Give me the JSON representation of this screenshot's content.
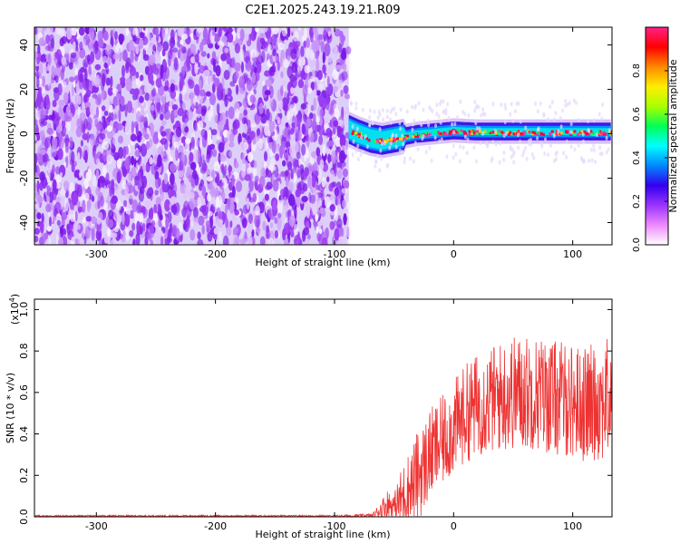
{
  "chart_data": [
    {
      "type": "heatmap",
      "title": "C2E1.2025.243.19.21.R09",
      "xlabel": "Height of straight line (km)",
      "ylabel": "Frequency (Hz)",
      "xlim": [
        -352,
        133
      ],
      "ylim": [
        -50,
        48
      ],
      "xticks": [
        -300,
        -200,
        -100,
        0,
        100
      ],
      "yticks": [
        -40,
        -20,
        0,
        20,
        40
      ],
      "signal_onset_km": -88,
      "ridge": {
        "x": [
          -88,
          -80,
          -70,
          -60,
          -50,
          -40,
          -30,
          -20,
          -10,
          0,
          20,
          40,
          60,
          80,
          100,
          133
        ],
        "freq": [
          2,
          0,
          -2,
          -3,
          -2,
          -1,
          0,
          0.5,
          1,
          1.5,
          1,
          1,
          1,
          1,
          1,
          1
        ]
      },
      "colorbar": {
        "label": "Normalized spectral amplitude",
        "range": [
          0,
          1
        ],
        "ticks": [
          0.0,
          0.2,
          0.4,
          0.6,
          0.8
        ],
        "tick_labels": [
          "0.0",
          "0.2",
          "0.4",
          "0.6",
          "0.8"
        ],
        "colormap": [
          "#ffffff",
          "#ee88ff",
          "#9933ff",
          "#3300ee",
          "#0088ff",
          "#00ffff",
          "#00ff55",
          "#aaff00",
          "#ffee00",
          "#ff8800",
          "#ff0000",
          "#ff2288"
        ]
      }
    },
    {
      "type": "line",
      "title": "",
      "xlabel": "Height of straight line (km)",
      "ylabel": "SNR (10 * v/v)",
      "scale_label": "(x10",
      "scale_exp": "4",
      "scale_close": ")",
      "xlim": [
        -352,
        133
      ],
      "ylim": [
        0,
        1.05
      ],
      "xticks": [
        -300,
        -200,
        -100,
        0,
        100
      ],
      "yticks": [
        0.0,
        0.2,
        0.4,
        0.6,
        0.8,
        1.0
      ],
      "ytick_labels": [
        "0.0",
        "0.2",
        "0.4",
        "0.6",
        "0.8",
        "1.0"
      ],
      "series": [
        {
          "name": "SNR",
          "color": "#ee3333",
          "envelope_x": [
            -352,
            -100,
            -68,
            -60,
            -55,
            -50,
            -45,
            -40,
            -35,
            -30,
            -25,
            -20,
            -10,
            0,
            10,
            20,
            30,
            40,
            50,
            60,
            70,
            80,
            90,
            100,
            110,
            120,
            133
          ],
          "envelope_mean": [
            0.004,
            0.004,
            0.006,
            0.04,
            0.06,
            0.05,
            0.08,
            0.12,
            0.15,
            0.2,
            0.24,
            0.3,
            0.36,
            0.43,
            0.5,
            0.54,
            0.56,
            0.58,
            0.6,
            0.6,
            0.6,
            0.58,
            0.57,
            0.56,
            0.54,
            0.56,
            0.57
          ],
          "envelope_spread": [
            0.004,
            0.004,
            0.01,
            0.05,
            0.08,
            0.06,
            0.14,
            0.17,
            0.2,
            0.22,
            0.22,
            0.22,
            0.22,
            0.23,
            0.24,
            0.25,
            0.26,
            0.27,
            0.28,
            0.28,
            0.28,
            0.28,
            0.28,
            0.28,
            0.28,
            0.29,
            0.3
          ]
        }
      ]
    }
  ],
  "colors": {
    "axis": "#000000",
    "noise_light": "#ddd0f8",
    "noise_dark": "#8a28ee",
    "line": "#ee3333"
  }
}
